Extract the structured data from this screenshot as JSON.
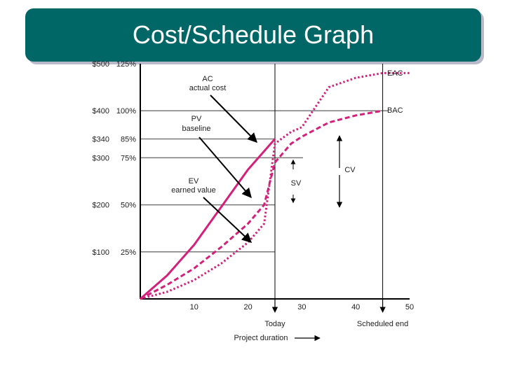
{
  "slide": {
    "title": "Cost/Schedule Graph"
  },
  "chart_data": {
    "type": "line",
    "title": "Cost/Schedule Graph",
    "xlim": [
      0,
      50
    ],
    "ylim": [
      0,
      500
    ],
    "x_ticks": [
      "10",
      "20",
      "30",
      "40",
      "50"
    ],
    "x_tick_values": [
      10,
      20,
      30,
      40,
      50
    ],
    "y_ticks": [
      {
        "value": 500,
        "dollar": "$500",
        "percent": "125%"
      },
      {
        "value": 400,
        "dollar": "$400",
        "percent": "100%"
      },
      {
        "value": 340,
        "dollar": "$340",
        "percent": "85%"
      },
      {
        "value": 300,
        "dollar": "$300",
        "percent": "75%"
      },
      {
        "value": 200,
        "dollar": "$200",
        "percent": "50%"
      },
      {
        "value": 100,
        "dollar": "$100",
        "percent": "25%"
      }
    ],
    "x_axis_labels": {
      "today": "Today",
      "scheduled_end": "Scheduled end",
      "duration": "Project duration"
    },
    "today_x": 25,
    "scheduled_end_x": 45,
    "colors": {
      "curves": "#d4207a",
      "axes": "#000000",
      "reference": "#7a7a7a",
      "banner": "#006666"
    },
    "series": [
      {
        "key": "pv",
        "style": "solid",
        "x": [
          0,
          5,
          10,
          15,
          20,
          25
        ],
        "values": [
          0,
          50,
          115,
          195,
          275,
          340
        ]
      },
      {
        "key": "ac",
        "style": "dotted",
        "x": [
          0,
          5,
          10,
          15,
          20,
          23,
          25,
          28,
          30,
          35,
          40,
          45,
          50
        ],
        "values": [
          0,
          15,
          40,
          75,
          120,
          160,
          330,
          355,
          365,
          450,
          470,
          480,
          480
        ]
      },
      {
        "key": "ev",
        "style": "dashed",
        "x": [
          0,
          5,
          10,
          15,
          20,
          23,
          25,
          28,
          30,
          35,
          40,
          45
        ],
        "values": [
          0,
          30,
          65,
          110,
          160,
          200,
          290,
          330,
          345,
          375,
          390,
          400
        ]
      }
    ],
    "annotations": [
      {
        "key": "ac",
        "line1": "AC",
        "line2": "actual cost"
      },
      {
        "key": "pv",
        "line1": "PV",
        "line2": "baseline"
      },
      {
        "key": "ev",
        "line1": "EV",
        "line2": "earned value"
      },
      {
        "key": "eac",
        "line1": "EAC"
      },
      {
        "key": "bac",
        "line1": "BAC"
      },
      {
        "key": "sv",
        "line1": "SV"
      },
      {
        "key": "cv",
        "line1": "CV"
      }
    ]
  }
}
